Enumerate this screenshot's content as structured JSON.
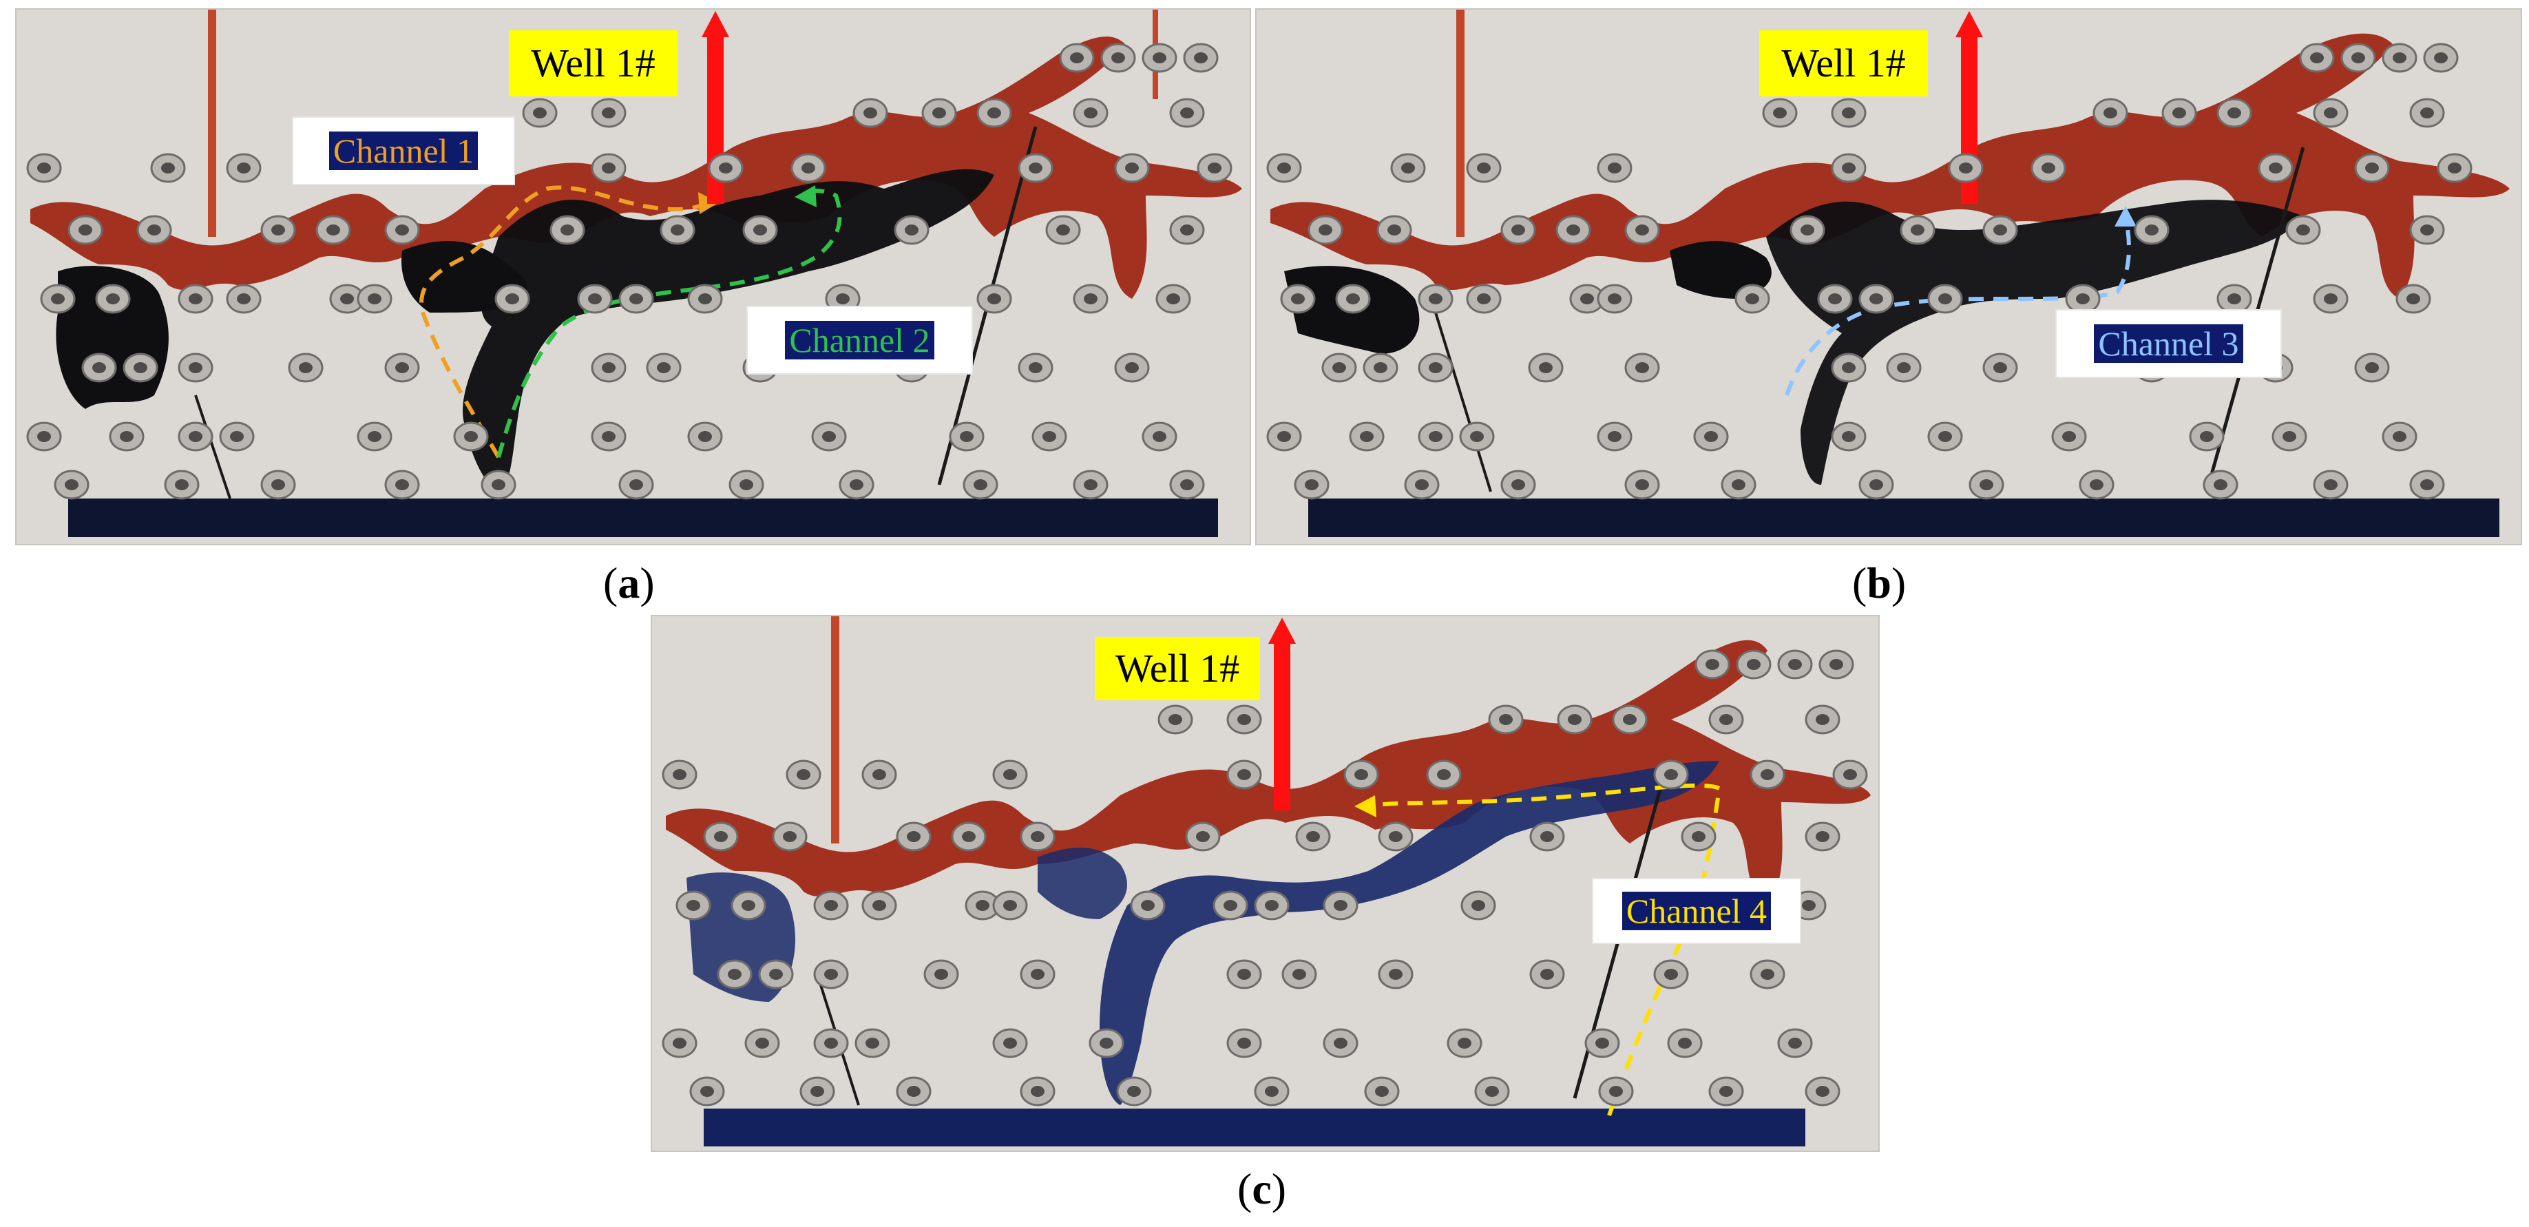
{
  "panels": [
    {
      "id": "a",
      "label": "a",
      "well_label": "Well 1#",
      "channels": [
        {
          "label": "Channel 1",
          "color": "#f0a020"
        },
        {
          "label": "Channel 2",
          "color": "#2ec24a"
        }
      ]
    },
    {
      "id": "b",
      "label": "b",
      "well_label": "Well 1#",
      "channels": [
        {
          "label": "Channel 3",
          "color": "#8fc4ff"
        }
      ]
    },
    {
      "id": "c",
      "label": "c",
      "well_label": "Well 1#",
      "channels": [
        {
          "label": "Channel 4",
          "color": "#ffe000"
        }
      ]
    }
  ],
  "colors": {
    "oil": "#a02a18",
    "water": "#0f0f12",
    "water_blue": "#1a2a6a",
    "plate": "#dcd8d3",
    "well_arrow": "#ff1010",
    "well_label_bg": "#ffff00",
    "channel_label_bg": "#0e1a6b"
  }
}
